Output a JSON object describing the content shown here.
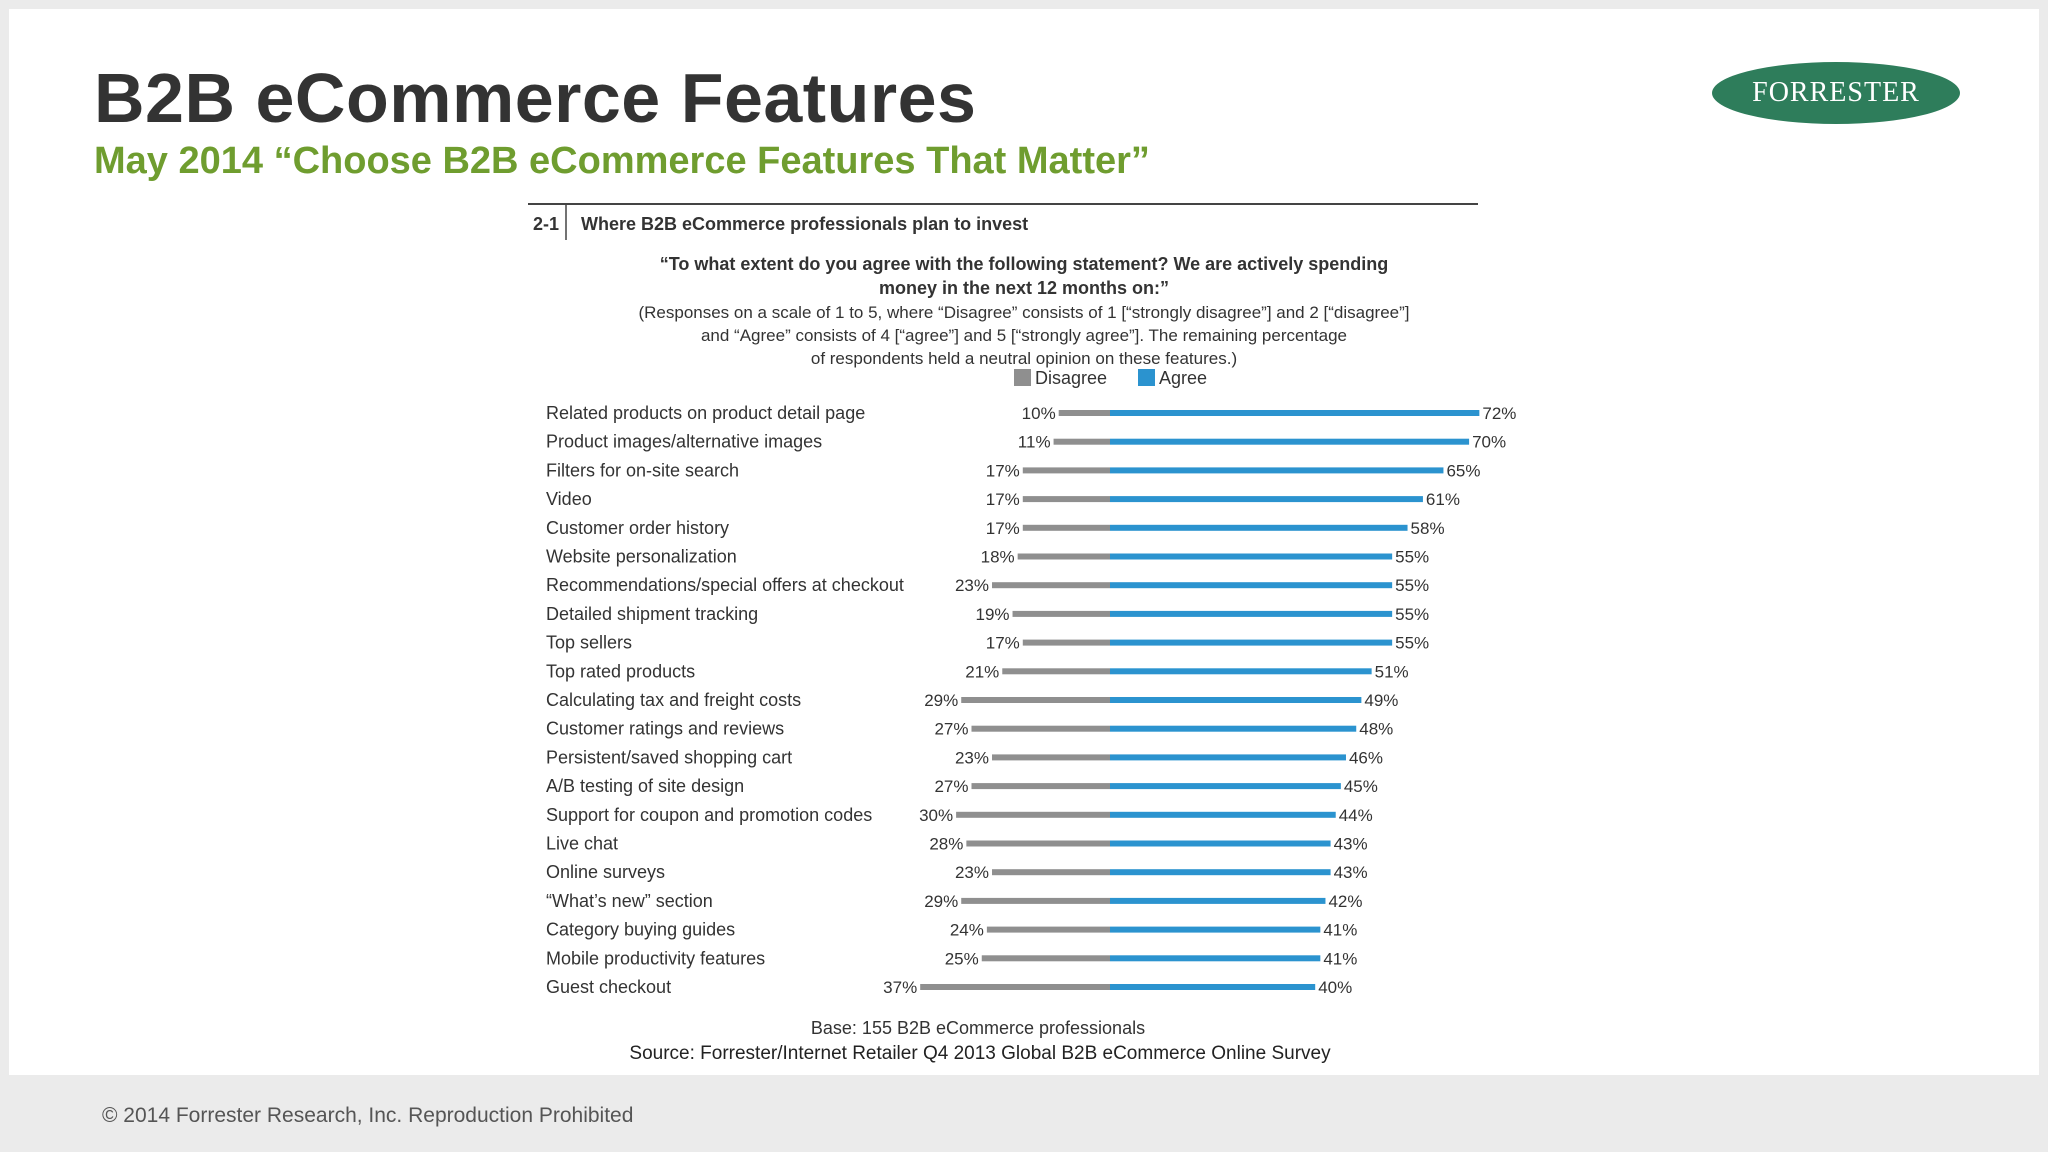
{
  "header": {
    "title": "B2B eCommerce Features",
    "subtitle": "May 2014 “Choose B2B eCommerce Features That Matter”",
    "logo_text": "FORRESTER"
  },
  "footer": {
    "copyright": "© 2014 Forrester Research, Inc. Reproduction Prohibited"
  },
  "colors": {
    "disagree": "#8f8f8f",
    "agree": "#2b93cf",
    "title": "#333333",
    "subtitle": "#6f9d2f",
    "logo": "#2e7d5b"
  },
  "chart_data": {
    "type": "bar",
    "figure_number": "2-1",
    "title": "Where B2B eCommerce professionals plan to invest",
    "question_lines": [
      "“To what extent do you agree with the following statement? We are actively spending",
      "money in the next 12 months on:”"
    ],
    "note_lines": [
      "(Responses on a scale of 1 to 5, where “Disagree” consists of 1 [“strongly disagree”] and 2 [“disagree”]",
      "and “Agree” consists of 4 [“agree”] and 5 [“strongly agree”]. The remaining percentage",
      "of respondents held a neutral opinion on these features.)"
    ],
    "legend": [
      "Disagree",
      "Agree"
    ],
    "categories": [
      "Related products on product detail page",
      "Product images/alternative images",
      "Filters for on-site search",
      "Video",
      "Customer order history",
      "Website personalization",
      "Recommendations/special offers at checkout",
      "Detailed shipment tracking",
      "Top sellers",
      "Top rated products",
      "Calculating tax and freight costs",
      "Customer ratings and reviews",
      "Persistent/saved shopping cart",
      "A/B testing of site design",
      "Support for coupon and promotion codes",
      "Live chat",
      "Online surveys",
      "“What’s new” section",
      "Category buying guides",
      "Mobile productivity features",
      "Guest checkout"
    ],
    "series": [
      {
        "name": "Disagree",
        "values": [
          10,
          11,
          17,
          17,
          17,
          18,
          23,
          19,
          17,
          21,
          29,
          27,
          23,
          27,
          30,
          28,
          23,
          29,
          24,
          25,
          37
        ]
      },
      {
        "name": "Agree",
        "values": [
          72,
          70,
          65,
          61,
          58,
          55,
          55,
          55,
          55,
          51,
          49,
          48,
          46,
          45,
          44,
          43,
          43,
          42,
          41,
          41,
          40
        ]
      }
    ],
    "value_suffix": "%",
    "base": "Base: 155 B2B eCommerce professionals",
    "source": "Source: Forrester/Internet Retailer Q4 2013 Global B2B eCommerce Online Survey"
  }
}
